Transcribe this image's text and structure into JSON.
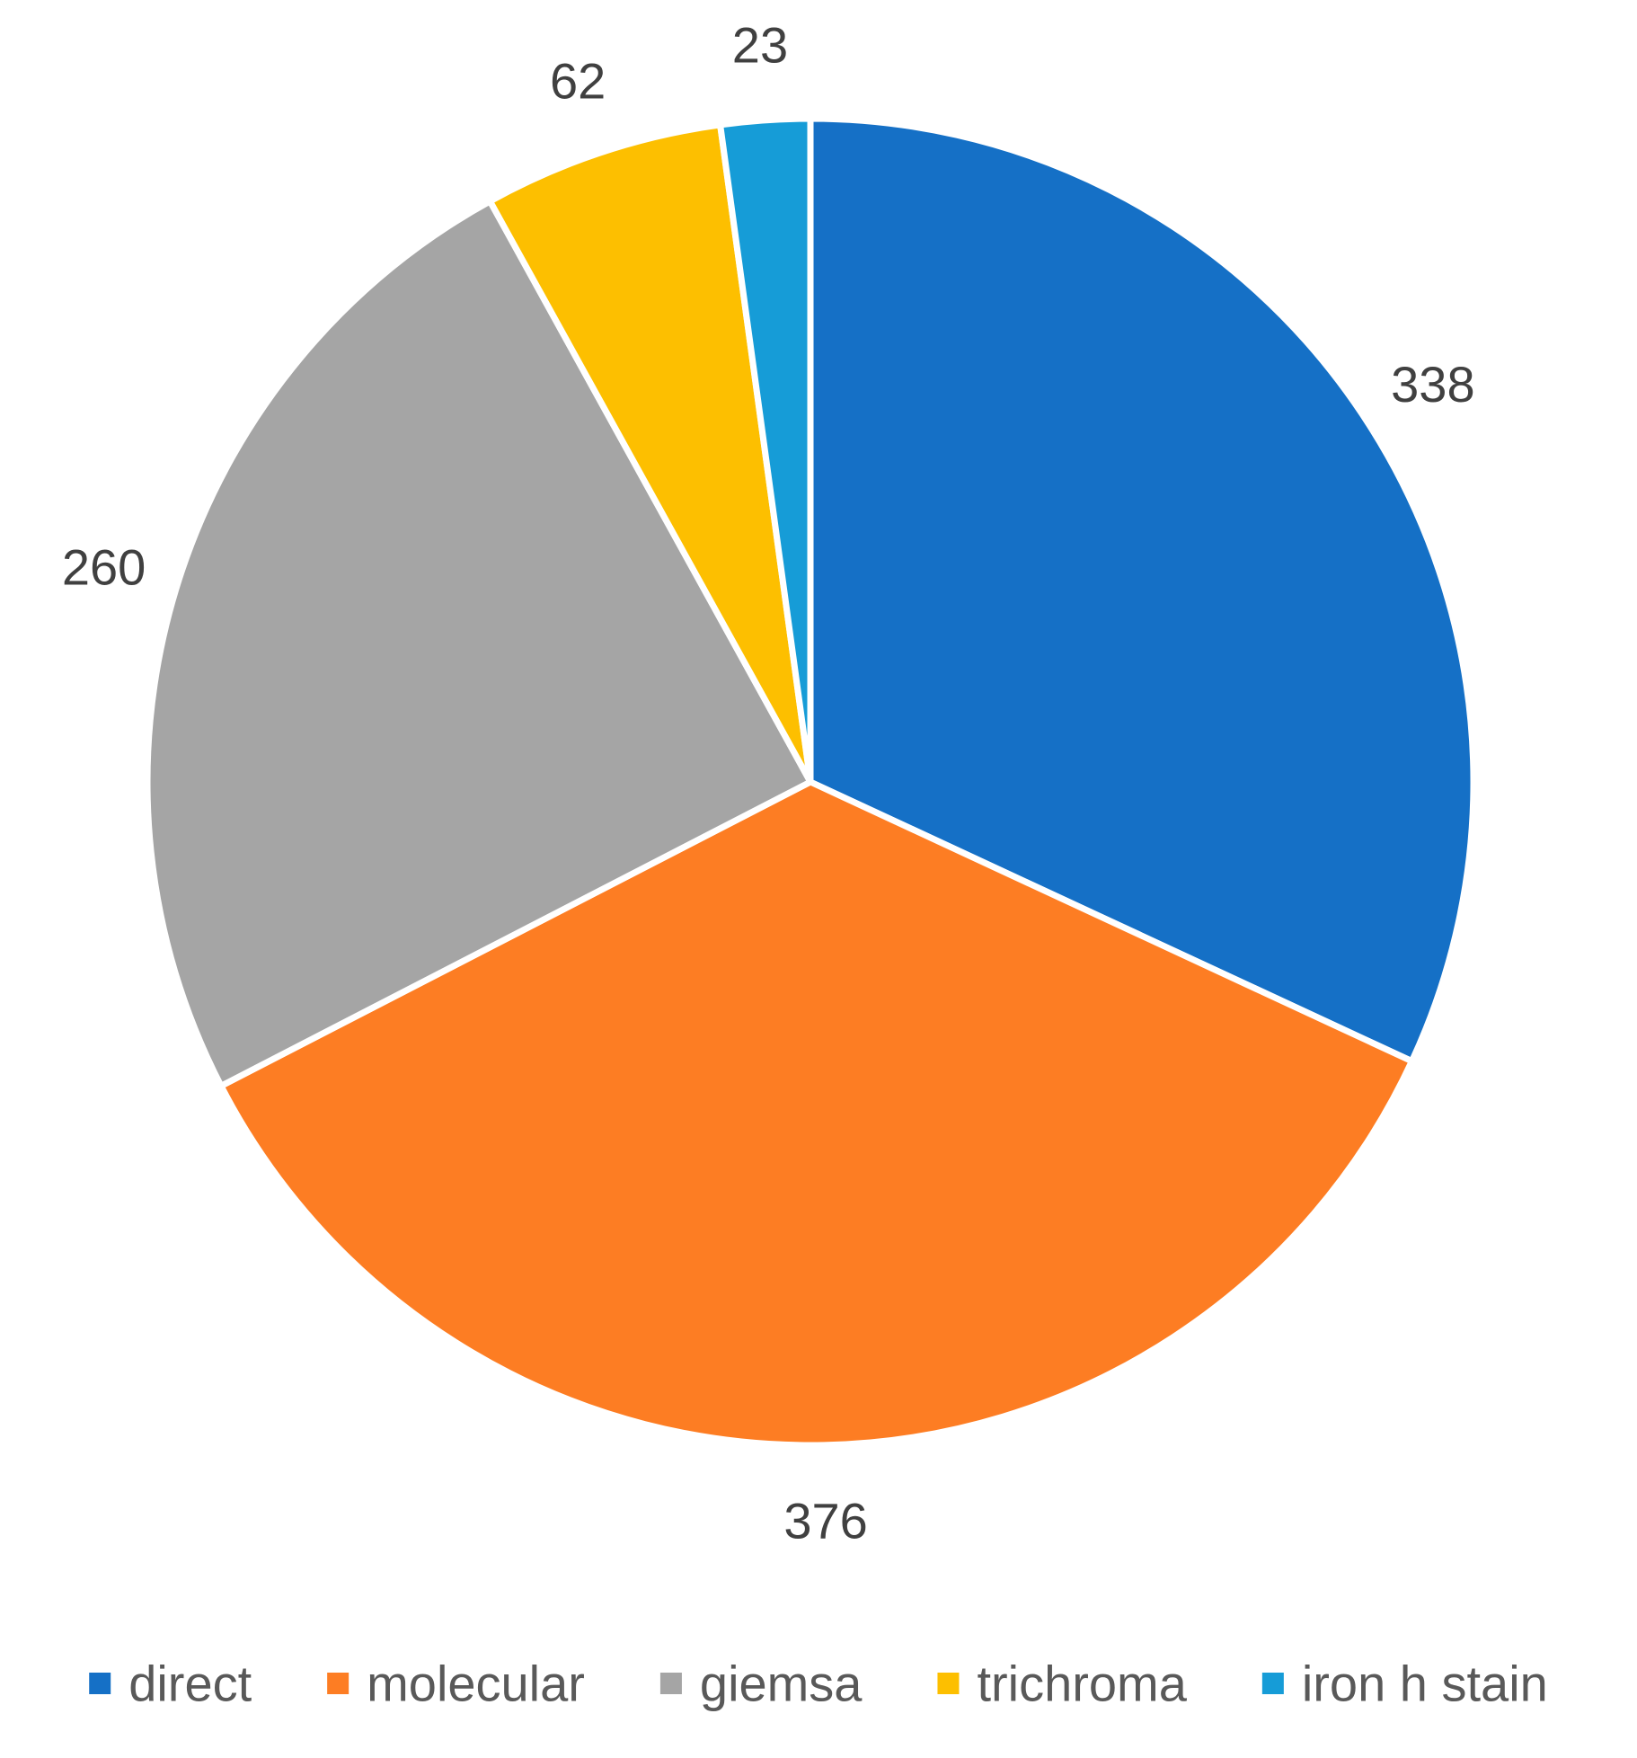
{
  "chart_data": {
    "type": "pie",
    "title": "",
    "categories": [
      "direct",
      "molecular",
      "giemsa",
      "trichroma",
      "iron h stain"
    ],
    "values": [
      338,
      376,
      260,
      62,
      23
    ],
    "colors": [
      "#1570C6",
      "#FD7D23",
      "#A5A5A5",
      "#FDBF00",
      "#169CD7"
    ],
    "start_angle_deg": 0,
    "direction": "clockwise",
    "data_labels": [
      "338",
      "376",
      "260",
      "62",
      "23"
    ],
    "legend": {
      "position": "bottom",
      "entries": [
        "direct",
        "molecular",
        "giemsa",
        "trichroma",
        "iron h stain"
      ]
    }
  }
}
